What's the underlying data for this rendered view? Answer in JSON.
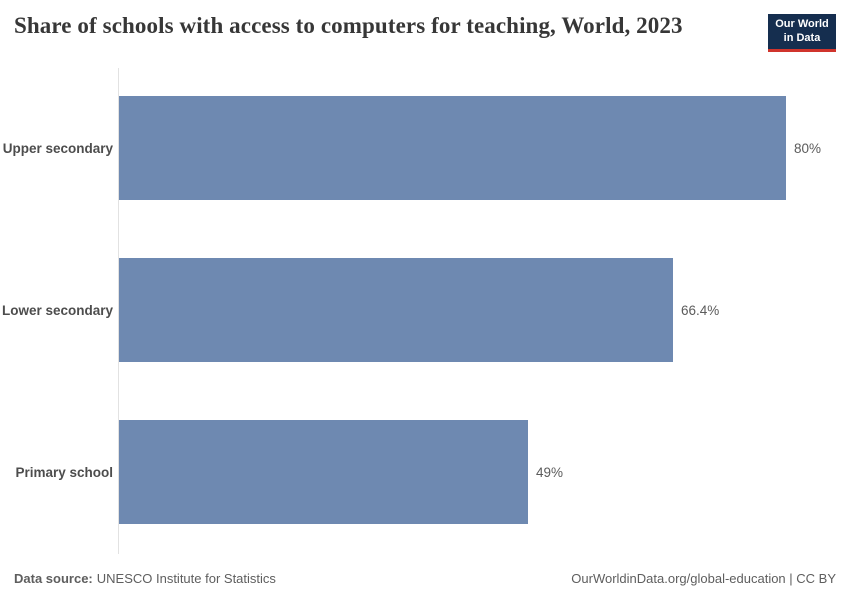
{
  "header": {
    "title": "Share of schools with access to computers for teaching, World, 2023"
  },
  "logo": {
    "line1": "Our World",
    "line2": "in Data"
  },
  "chart_data": {
    "type": "bar",
    "orientation": "horizontal",
    "title": "Share of schools with access to computers for teaching, World, 2023",
    "categories": [
      "Upper secondary",
      "Lower secondary",
      "Primary school"
    ],
    "values": [
      80,
      66.4,
      49
    ],
    "value_labels": [
      "80%",
      "66.4%",
      "49%"
    ],
    "xlabel": "",
    "ylabel": "",
    "xlim": [
      0,
      85
    ],
    "grid": false,
    "legend": "none",
    "bar_color": "#6e89b1"
  },
  "footer": {
    "source_label": "Data source:",
    "source_value": "UNESCO Institute for Statistics",
    "right_text": "OurWorldinData.org/global-education | CC BY"
  },
  "colors": {
    "title": "#373737",
    "label": "#4d4d4d",
    "value": "#5b5b5b",
    "footer": "#5e5e5e",
    "axis": "#e2e2e2",
    "bar": "#6e89b1",
    "logo-bg": "#152e4f",
    "logo-red": "#d0342c"
  }
}
